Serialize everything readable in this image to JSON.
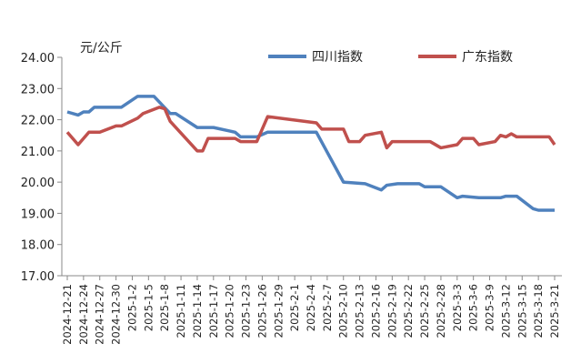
{
  "chart_data": {
    "type": "line",
    "ylabel": "元/公斤",
    "ylim": [
      17,
      24
    ],
    "yticks": [
      "17.00",
      "18.00",
      "19.00",
      "20.00",
      "21.00",
      "22.00",
      "23.00",
      "24.00"
    ],
    "xlim": [
      "2024-12-21",
      "2025-3-21"
    ],
    "xticks": [
      "2024-12-21",
      "2024-12-24",
      "2024-12-27",
      "2024-12-30",
      "2025-1-2",
      "2025-1-5",
      "2025-1-8",
      "2025-1-11",
      "2025-1-14",
      "2025-1-17",
      "2025-1-20",
      "2025-1-23",
      "2025-1-26",
      "2025-1-29",
      "2025-2-1",
      "2025-2-4",
      "2025-2-7",
      "2025-2-10",
      "2025-2-13",
      "2025-2-16",
      "2025-2-19",
      "2025-2-22",
      "2025-2-25",
      "2025-2-28",
      "2025-3-3",
      "2025-3-6",
      "2025-3-9",
      "2025-3-12",
      "2025-3-15",
      "2025-3-18",
      "2025-3-21"
    ],
    "grid": false,
    "legend": "top-right",
    "series": [
      {
        "name": "四川指数",
        "color": "#4f81bd",
        "points": [
          [
            "2024-12-21",
            22.25
          ],
          [
            "2024-12-23",
            22.15
          ],
          [
            "2024-12-24",
            22.25
          ],
          [
            "2024-12-25",
            22.25
          ],
          [
            "2024-12-26",
            22.4
          ],
          [
            "2024-12-31",
            22.4
          ],
          [
            "2025-1-3",
            22.75
          ],
          [
            "2025-1-6",
            22.75
          ],
          [
            "2025-1-9",
            22.2
          ],
          [
            "2025-1-10",
            22.2
          ],
          [
            "2025-1-14",
            21.75
          ],
          [
            "2025-1-17",
            21.75
          ],
          [
            "2025-1-21",
            21.6
          ],
          [
            "2025-1-22",
            21.45
          ],
          [
            "2025-1-25",
            21.45
          ],
          [
            "2025-1-27",
            21.6
          ],
          [
            "2025-2-5",
            21.6
          ],
          [
            "2025-2-10",
            20.0
          ],
          [
            "2025-2-14",
            19.95
          ],
          [
            "2025-2-17",
            19.75
          ],
          [
            "2025-2-18",
            19.9
          ],
          [
            "2025-2-20",
            19.95
          ],
          [
            "2025-2-24",
            19.95
          ],
          [
            "2025-2-25",
            19.85
          ],
          [
            "2025-2-28",
            19.85
          ],
          [
            "2025-3-3",
            19.5
          ],
          [
            "2025-3-4",
            19.55
          ],
          [
            "2025-3-7",
            19.5
          ],
          [
            "2025-3-11",
            19.5
          ],
          [
            "2025-3-12",
            19.55
          ],
          [
            "2025-3-14",
            19.55
          ],
          [
            "2025-3-17",
            19.15
          ],
          [
            "2025-3-18",
            19.1
          ],
          [
            "2025-3-21",
            19.1
          ]
        ]
      },
      {
        "name": "广东指数",
        "color": "#c0504d",
        "points": [
          [
            "2024-12-21",
            21.6
          ],
          [
            "2024-12-23",
            21.2
          ],
          [
            "2024-12-25",
            21.6
          ],
          [
            "2024-12-27",
            21.6
          ],
          [
            "2024-12-30",
            21.8
          ],
          [
            "2024-12-31",
            21.8
          ],
          [
            "2025-1-3",
            22.05
          ],
          [
            "2025-1-4",
            22.2
          ],
          [
            "2025-1-7",
            22.4
          ],
          [
            "2025-1-8",
            22.35
          ],
          [
            "2025-1-9",
            21.95
          ],
          [
            "2025-1-14",
            21.0
          ],
          [
            "2025-1-15",
            21.0
          ],
          [
            "2025-1-16",
            21.4
          ],
          [
            "2025-1-21",
            21.4
          ],
          [
            "2025-1-22",
            21.3
          ],
          [
            "2025-1-25",
            21.3
          ],
          [
            "2025-1-27",
            22.1
          ],
          [
            "2025-2-5",
            21.9
          ],
          [
            "2025-2-6",
            21.7
          ],
          [
            "2025-2-10",
            21.7
          ],
          [
            "2025-2-11",
            21.3
          ],
          [
            "2025-2-13",
            21.3
          ],
          [
            "2025-2-14",
            21.5
          ],
          [
            "2025-2-17",
            21.6
          ],
          [
            "2025-2-18",
            21.1
          ],
          [
            "2025-2-19",
            21.3
          ],
          [
            "2025-2-26",
            21.3
          ],
          [
            "2025-2-28",
            21.1
          ],
          [
            "2025-3-3",
            21.2
          ],
          [
            "2025-3-4",
            21.4
          ],
          [
            "2025-3-6",
            21.4
          ],
          [
            "2025-3-7",
            21.2
          ],
          [
            "2025-3-10",
            21.3
          ],
          [
            "2025-3-11",
            21.5
          ],
          [
            "2025-3-12",
            21.45
          ],
          [
            "2025-3-13",
            21.55
          ],
          [
            "2025-3-14",
            21.45
          ],
          [
            "2025-3-20",
            21.45
          ],
          [
            "2025-3-21",
            21.2
          ]
        ]
      }
    ]
  }
}
